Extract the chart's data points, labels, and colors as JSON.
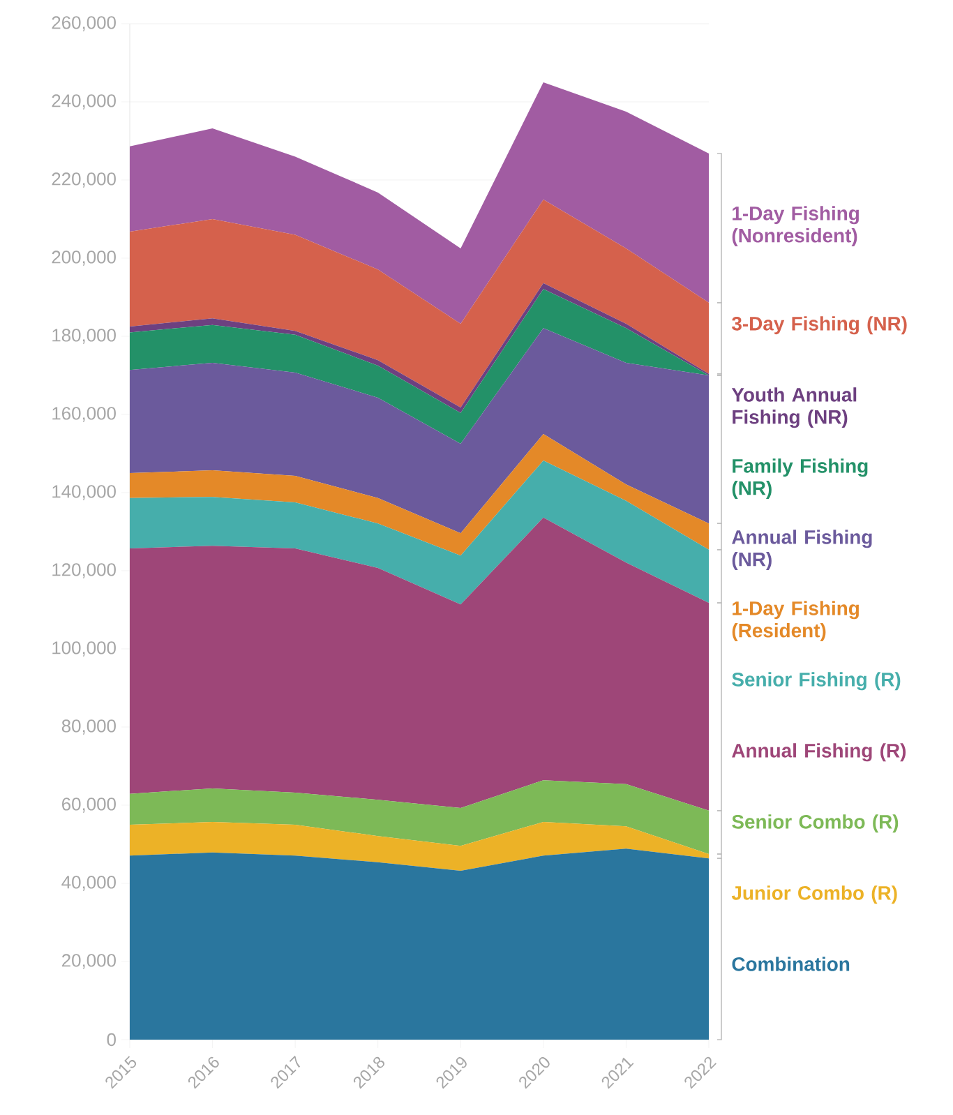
{
  "chart_data": {
    "type": "area",
    "stacked": true,
    "grid": "y",
    "categories": [
      "2015",
      "2016",
      "2017",
      "2018",
      "2019",
      "2020",
      "2021",
      "2022"
    ],
    "ylim": [
      0,
      260000
    ],
    "yticks": [
      0,
      {
        "value": 20000,
        "label": "20,000"
      },
      {
        "value": 40000,
        "label": "40,000"
      },
      {
        "value": 60000,
        "label": "60,000"
      },
      {
        "value": 80000,
        "label": "80,000"
      },
      {
        "value": 100000,
        "label": "100,000"
      },
      {
        "value": 120000,
        "label": "120,000"
      },
      {
        "value": 140000,
        "label": "140,000"
      },
      {
        "value": 160000,
        "label": "160,000"
      },
      {
        "value": 180000,
        "label": "180,000"
      },
      {
        "value": 200000,
        "label": "200,000"
      },
      {
        "value": 220000,
        "label": "220,000"
      },
      {
        "value": 240000,
        "label": "240,000"
      },
      {
        "value": 260000,
        "label": "260,000"
      }
    ],
    "series": [
      {
        "name": "Combination",
        "color": "#2a769e",
        "values": [
          47100,
          47900,
          47100,
          45400,
          43200,
          47100,
          48900,
          46400
        ]
      },
      {
        "name": "Junior Combo (R)",
        "color": "#ecb227",
        "values": [
          7900,
          7800,
          7900,
          6700,
          6400,
          8600,
          5700,
          1100
        ]
      },
      {
        "name": "Senior Combo (R)",
        "color": "#7db957",
        "values": [
          7900,
          8600,
          8200,
          9300,
          9700,
          10700,
          10800,
          11100
        ]
      },
      {
        "name": "Annual Fishing (R)",
        "color": "#9e4678",
        "values": [
          62800,
          62100,
          62500,
          59300,
          52100,
          67200,
          56700,
          53200
        ]
      },
      {
        "name": "Senior Fishing (R)",
        "color": "#46aeab",
        "values": [
          12900,
          12500,
          11800,
          11400,
          12500,
          14600,
          15800,
          13600
        ]
      },
      {
        "name": "1-Day Fishing (Resident)",
        "color": "#e48928",
        "values": [
          6400,
          6800,
          6800,
          6500,
          5700,
          6800,
          4200,
          6700
        ]
      },
      {
        "name": "Annual Fishing (NR)",
        "color": "#6b5a9c",
        "values": [
          26400,
          27500,
          26400,
          25700,
          22900,
          27100,
          31100,
          37900
        ]
      },
      {
        "name": "Family Fishing (NR)",
        "color": "#239168",
        "values": [
          9600,
          9700,
          9700,
          8200,
          7900,
          10000,
          8900,
          0
        ]
      },
      {
        "name": "Youth Annual Fishing (NR)",
        "color": "#6d4080",
        "values": [
          1500,
          1700,
          1000,
          1400,
          1400,
          1500,
          1100,
          400
        ]
      },
      {
        "name": "3-Day Fishing (NR)",
        "color": "#d5614c",
        "values": [
          24300,
          25400,
          24600,
          23200,
          21400,
          21400,
          19300,
          18200
        ]
      },
      {
        "name": "1-Day Fishing (Nonresident)",
        "color": "#a15ca2",
        "values": [
          21800,
          23200,
          20000,
          19700,
          19300,
          30000,
          35000,
          38200
        ]
      }
    ]
  }
}
